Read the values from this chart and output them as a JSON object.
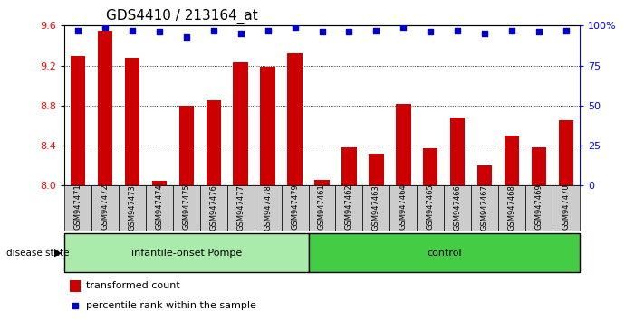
{
  "title": "GDS4410 / 213164_at",
  "samples": [
    "GSM947471",
    "GSM947472",
    "GSM947473",
    "GSM947474",
    "GSM947475",
    "GSM947476",
    "GSM947477",
    "GSM947478",
    "GSM947479",
    "GSM947461",
    "GSM947462",
    "GSM947463",
    "GSM947464",
    "GSM947465",
    "GSM947466",
    "GSM947467",
    "GSM947468",
    "GSM947469",
    "GSM947470"
  ],
  "bar_values": [
    9.3,
    9.55,
    9.28,
    8.05,
    8.8,
    8.85,
    9.23,
    9.19,
    9.32,
    8.06,
    8.38,
    8.32,
    8.82,
    8.37,
    8.68,
    8.2,
    8.5,
    8.38,
    8.65
  ],
  "dot_values": [
    97,
    99,
    97,
    96,
    93,
    97,
    95,
    97,
    99,
    96,
    96,
    97,
    99,
    96,
    97,
    95,
    97,
    96,
    97
  ],
  "group1_label": "infantile-onset Pompe",
  "group2_label": "control",
  "group1_count": 9,
  "group2_count": 10,
  "disease_state_label": "disease state",
  "ymin": 8.0,
  "ymax": 9.6,
  "yticks": [
    8.0,
    8.4,
    8.8,
    9.2,
    9.6
  ],
  "y2min": 0,
  "y2max": 100,
  "y2ticks": [
    0,
    25,
    50,
    75,
    100
  ],
  "bar_color": "#cc0000",
  "dot_color": "#0000cc",
  "group1_bg": "#aaeaaa",
  "group2_bg": "#44cc44",
  "tick_label_bg": "#cccccc",
  "legend_bar_label": "transformed count",
  "legend_dot_label": "percentile rank within the sample",
  "title_fontsize": 11,
  "axis_fontsize": 8,
  "label_fontsize": 8
}
